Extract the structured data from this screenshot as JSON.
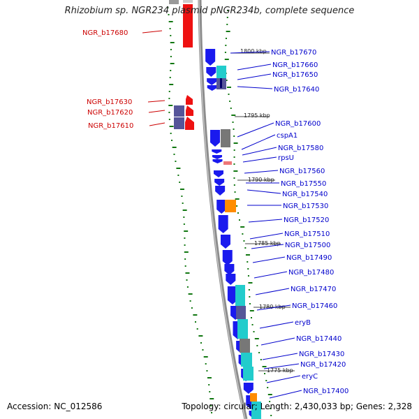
{
  "title": "Rhizobium sp. NGR234 plasmid pNGR234b, complete sequence",
  "footer": {
    "accession": "Accession: NC_012586",
    "summary": "Topology: circular; Length: 2,430,033 bp; Genes: 2,328"
  },
  "colors": {
    "forward_gene": "#1a1aee",
    "reverse_gene": "#ee1111",
    "forward_label": "#0000cc",
    "reverse_label": "#cc0000",
    "backbone": "#8c8c8c",
    "gc_dots": "#117711",
    "cyan": "#22cccc",
    "slate": "#555599",
    "grey": "#777777",
    "orange": "#ff8c00",
    "pink": "#ee7777",
    "dark_slate": "#333377"
  },
  "kbp_labels": [
    "1800 kbp",
    "1795 kbp",
    "1790 kbp",
    "1785 kbp",
    "1780 kbp",
    "1775 kbp"
  ],
  "reverse_genes": [
    "NGR_b17680",
    "NGR_b17630",
    "NGR_b17620",
    "NGR_b17610"
  ],
  "forward_genes": [
    "NGR_b17670",
    "NGR_b17660",
    "NGR_b17650",
    "NGR_b17640",
    "NGR_b17600",
    "cspA1",
    "NGR_b17580",
    "rpsU",
    "NGR_b17560",
    "NGR_b17550",
    "NGR_b17540",
    "NGR_b17530",
    "NGR_b17520",
    "NGR_b17510",
    "NGR_b17500",
    "NGR_b17490",
    "NGR_b17480",
    "NGR_b17470",
    "NGR_b17460",
    "eryB",
    "NGR_b17440",
    "NGR_b17430",
    "NGR_b17420",
    "eryC",
    "NGR_b17400"
  ]
}
